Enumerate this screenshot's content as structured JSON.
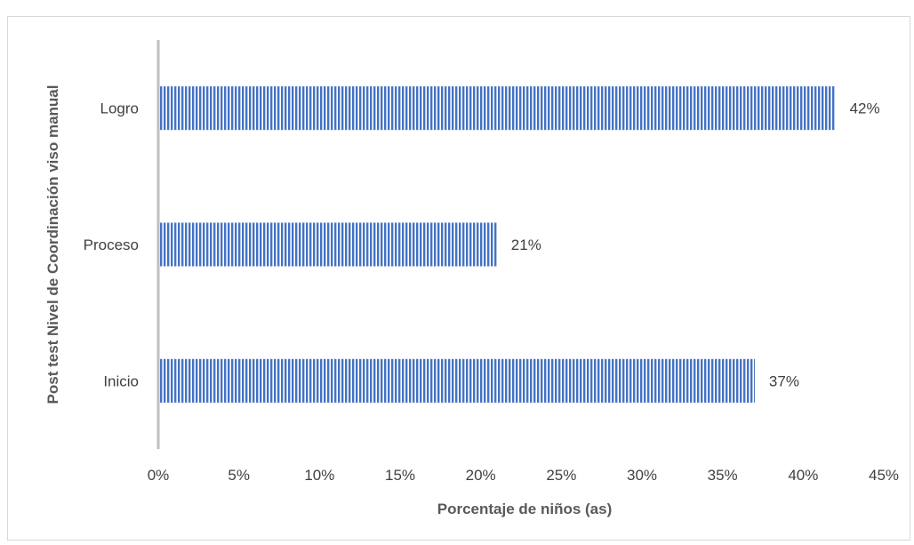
{
  "chart_data": {
    "type": "bar",
    "orientation": "horizontal",
    "categories": [
      "Logro",
      "Proceso",
      "Inicio"
    ],
    "values": [
      42,
      21,
      37
    ],
    "data_labels": [
      "42%",
      "21%",
      "37%"
    ],
    "xlabel": "Porcentaje de niños (as)",
    "ylabel": "Post test Nivel de Coordinación viso manual",
    "xlim": [
      0,
      45
    ],
    "x_ticks": [
      "0%",
      "5%",
      "10%",
      "15%",
      "20%",
      "25%",
      "30%",
      "35%",
      "40%",
      "45%"
    ],
    "grid": false,
    "legend": "none",
    "bar_color": "#4472c4",
    "bar_pattern": "vertical-stripes"
  }
}
